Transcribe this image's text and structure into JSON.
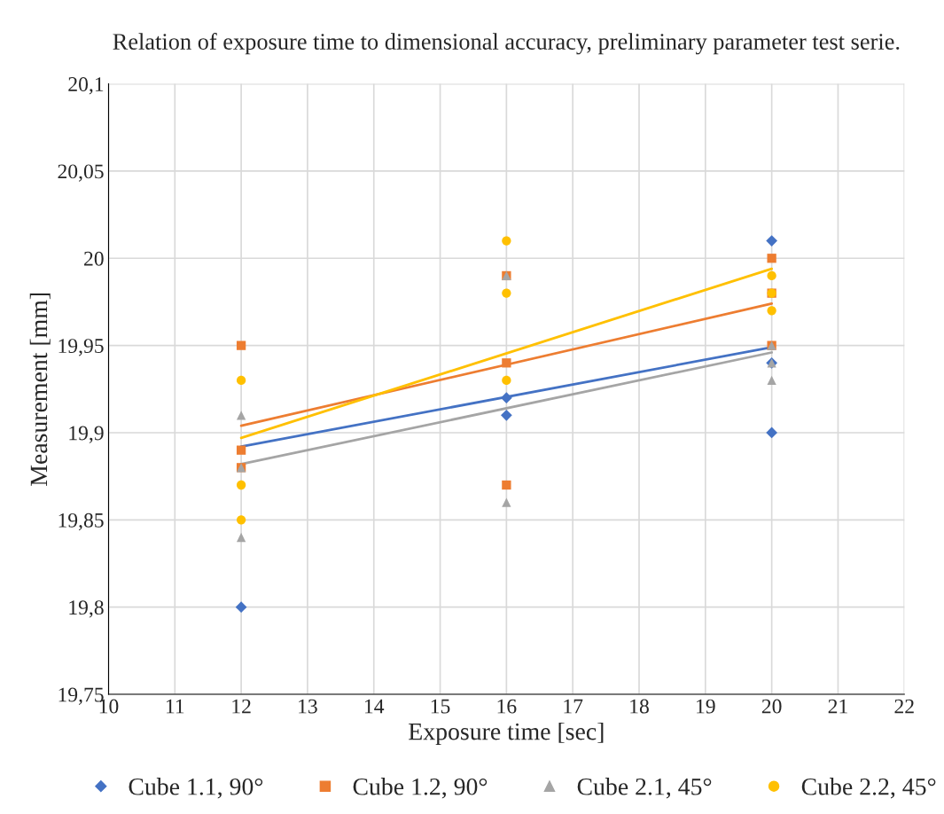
{
  "chart_data": {
    "type": "scatter",
    "title": "Relation of exposure time to dimensional accuracy, preliminary parameter test serie.",
    "xlabel": "Exposure time [sec]",
    "ylabel": "Measurement [mm]",
    "xlim": [
      10,
      22
    ],
    "xticks": [
      10,
      11,
      12,
      13,
      14,
      15,
      16,
      17,
      18,
      19,
      20,
      21,
      22
    ],
    "ylim": [
      19.75,
      20.1
    ],
    "yticks": [
      {
        "value": 19.75,
        "label": "19,75"
      },
      {
        "value": 19.8,
        "label": "19,8"
      },
      {
        "value": 19.85,
        "label": "19,85"
      },
      {
        "value": 19.9,
        "label": "19,9"
      },
      {
        "value": 19.95,
        "label": "19,95"
      },
      {
        "value": 20,
        "label": "20"
      },
      {
        "value": 20.05,
        "label": "20,05"
      },
      {
        "value": 20.1,
        "label": "20,1"
      }
    ],
    "grid": true,
    "legend": "bottom",
    "series": [
      {
        "name": "Cube 1.1, 90°",
        "color": "#4472c4",
        "marker": "diamond",
        "x": [
          12,
          16,
          16,
          20,
          20,
          20
        ],
        "values": [
          19.8,
          19.92,
          19.91,
          20.01,
          19.9,
          19.94
        ]
      },
      {
        "name": "Cube 1.2, 90°",
        "color": "#ed7d31",
        "marker": "square",
        "x": [
          12,
          12,
          12,
          16,
          16,
          16,
          20,
          20,
          20
        ],
        "values": [
          19.95,
          19.89,
          19.88,
          19.99,
          19.94,
          19.87,
          20.0,
          19.98,
          19.95
        ]
      },
      {
        "name": "Cube 2.1, 45°",
        "color": "#a5a5a5",
        "marker": "triangle",
        "x": [
          12,
          12,
          12,
          16,
          16,
          20,
          20,
          20
        ],
        "values": [
          19.91,
          19.88,
          19.84,
          19.99,
          19.86,
          19.95,
          19.94,
          19.93
        ]
      },
      {
        "name": "Cube 2.2, 45°",
        "color": "#ffc000",
        "marker": "circle",
        "x": [
          12,
          12,
          12,
          16,
          16,
          16,
          20,
          20,
          20
        ],
        "values": [
          19.93,
          19.87,
          19.85,
          20.01,
          19.98,
          19.93,
          19.99,
          19.98,
          19.97
        ]
      },
      {
        "type": "line",
        "color": "#4472c4",
        "marker": "none",
        "x": [
          12,
          20
        ],
        "values": [
          19.892,
          19.949
        ]
      },
      {
        "type": "line",
        "color": "#ed7d31",
        "marker": "none",
        "x": [
          12,
          20
        ],
        "values": [
          19.904,
          19.974
        ]
      },
      {
        "type": "line",
        "color": "#a5a5a5",
        "marker": "none",
        "x": [
          12,
          20
        ],
        "values": [
          19.882,
          19.946
        ]
      },
      {
        "type": "line",
        "color": "#ffc000",
        "marker": "none",
        "x": [
          12,
          20
        ],
        "values": [
          19.897,
          19.994
        ]
      }
    ]
  }
}
